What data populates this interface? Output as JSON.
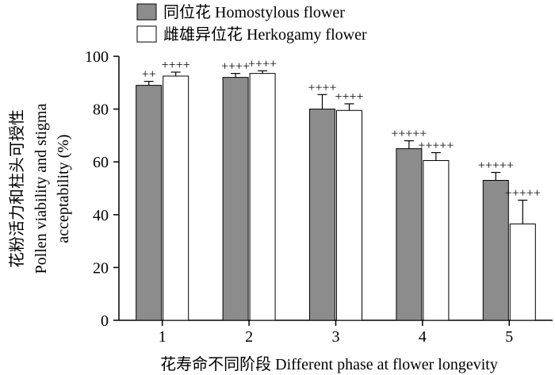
{
  "chart_data": {
    "type": "bar",
    "categories": [
      "1",
      "2",
      "3",
      "4",
      "5"
    ],
    "series": [
      {
        "name": "同位花 Homostylous flower",
        "color": "#8c8c8c",
        "values": [
          89,
          92,
          80,
          65,
          53
        ],
        "errors": [
          1.5,
          1.5,
          5.5,
          3,
          3
        ],
        "marks": [
          "++",
          "++++",
          "++++",
          "+++++",
          "+++++"
        ]
      },
      {
        "name": "雌雄异位花 Herkogamy flower",
        "color": "#ffffff",
        "values": [
          92.5,
          93.5,
          79.5,
          60.5,
          36.5
        ],
        "errors": [
          1.5,
          1,
          2.5,
          3,
          9
        ],
        "marks": [
          "++++",
          "++++",
          "++++",
          "+++++",
          "+++++"
        ]
      }
    ],
    "ylim": [
      0,
      100
    ],
    "yticks": [
      0,
      20,
      40,
      60,
      80,
      100
    ],
    "xlabel": "花寿命不同阶段 Different phase at flower longevity",
    "ylabel_lines": [
      "花粉活力和柱头可授性",
      "Pollen viability and stigma",
      "acceptability (%)"
    ],
    "legend_position": "top-left",
    "grid": false
  }
}
